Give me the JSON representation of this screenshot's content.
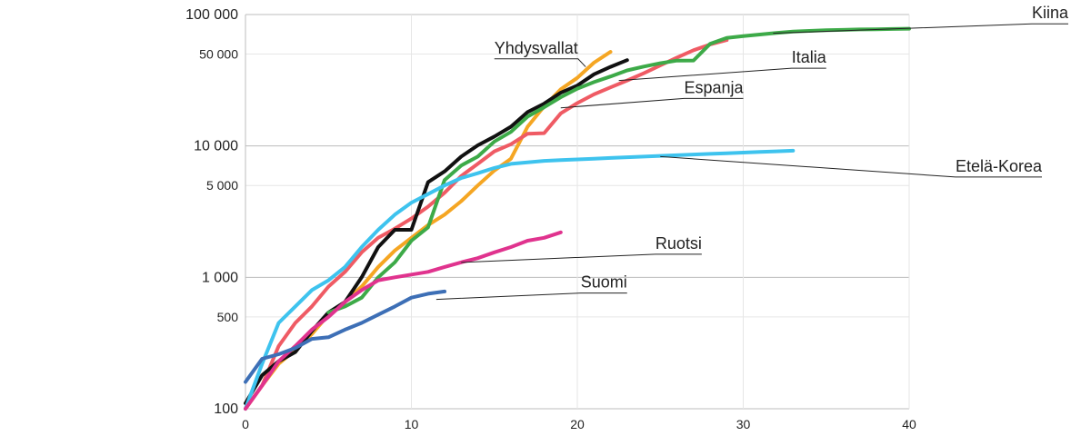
{
  "chart_data": {
    "type": "line",
    "y_scale": "log",
    "xlim": [
      0,
      40
    ],
    "ylim": [
      100,
      100000
    ],
    "x_ticks": [
      {
        "value": 0,
        "label": "0"
      },
      {
        "value": 10,
        "label": "10"
      },
      {
        "value": 20,
        "label": "20"
      },
      {
        "value": 30,
        "label": "30"
      },
      {
        "value": 40,
        "label": "40"
      }
    ],
    "y_ticks": [
      {
        "value": 100,
        "label": "100",
        "major": true
      },
      {
        "value": 500,
        "label": "500",
        "major": false
      },
      {
        "value": 1000,
        "label": "1 000",
        "major": true
      },
      {
        "value": 5000,
        "label": "5 000",
        "major": false
      },
      {
        "value": 10000,
        "label": "10 000",
        "major": true
      },
      {
        "value": 50000,
        "label": "50 000",
        "major": false
      },
      {
        "value": 100000,
        "label": "100 000",
        "major": true
      }
    ],
    "grid": "on",
    "series": [
      {
        "name": "Yhdysvallat",
        "color": "#F5A623",
        "x": [
          0,
          1,
          2,
          3,
          4,
          5,
          6,
          7,
          8,
          9,
          10,
          11,
          12,
          13,
          14,
          15,
          16,
          17,
          18,
          19,
          20,
          21,
          22
        ],
        "y": [
          100,
          150,
          220,
          280,
          370,
          520,
          650,
          850,
          1200,
          1600,
          2000,
          2500,
          3000,
          3800,
          5000,
          6500,
          8000,
          14000,
          20000,
          27000,
          33000,
          43000,
          52000
        ],
        "label": {
          "x": 15,
          "y": 46000,
          "side": "left",
          "leader_end": {
            "x": 20.5,
            "y": 40000
          }
        }
      },
      {
        "name": "Italia",
        "color": "#EF5B64",
        "x": [
          0,
          1,
          2,
          3,
          4,
          5,
          6,
          7,
          8,
          9,
          10,
          11,
          12,
          13,
          14,
          15,
          16,
          17,
          18,
          19,
          20,
          21,
          22,
          23,
          24,
          25,
          26,
          27,
          28,
          29
        ],
        "y": [
          100,
          150,
          300,
          450,
          600,
          850,
          1100,
          1550,
          2000,
          2350,
          2800,
          3450,
          4400,
          5900,
          7300,
          9100,
          10300,
          12400,
          12500,
          17700,
          21200,
          24700,
          27900,
          31500,
          35700,
          41000,
          47000,
          53500,
          59100,
          63900
        ],
        "label": {
          "x": 35,
          "y": 39000,
          "side": "right",
          "leader_end": {
            "x": 22.5,
            "y": 31500
          }
        }
      },
      {
        "name": "Espanja",
        "color": "#111111",
        "x": [
          0,
          1,
          2,
          3,
          4,
          5,
          6,
          7,
          8,
          9,
          10,
          11,
          12,
          13,
          14,
          15,
          16,
          17,
          18,
          19,
          20,
          21,
          22,
          23
        ],
        "y": [
          110,
          180,
          230,
          270,
          390,
          540,
          650,
          1000,
          1700,
          2300,
          2300,
          5300,
          6400,
          8300,
          10100,
          11800,
          14000,
          18100,
          21000,
          25400,
          28800,
          35100,
          40000,
          45000
        ],
        "label": {
          "x": 30,
          "y": 23000,
          "side": "right",
          "leader_end": {
            "x": 19,
            "y": 19500
          }
        }
      },
      {
        "name": "Kiina",
        "color": "#3DAA48",
        "x": [
          5,
          6,
          7,
          8,
          9,
          10,
          11,
          12,
          13,
          14,
          15,
          16,
          17,
          18,
          19,
          20,
          21,
          22,
          23,
          24,
          25,
          26,
          27,
          28,
          29,
          30,
          31,
          32,
          33,
          34,
          35,
          36,
          37,
          38,
          39,
          40
        ],
        "y": [
          540,
          600,
          700,
          1000,
          1300,
          1900,
          2400,
          5500,
          7100,
          8300,
          10800,
          12800,
          16700,
          19700,
          23500,
          27300,
          30600,
          33800,
          37600,
          40200,
          42600,
          44600,
          44700,
          59800,
          66400,
          68500,
          70500,
          72400,
          74200,
          75100,
          75900,
          76400,
          77000,
          77300,
          77700,
          78000
        ],
        "label": {
          "x": 50,
          "y": 85000,
          "side": "right",
          "leader_end": {
            "x": 31.8,
            "y": 72000
          }
        }
      },
      {
        "name": "Etelä-Korea",
        "color": "#3EC3EE",
        "x": [
          0,
          1,
          2,
          3,
          4,
          5,
          6,
          7,
          8,
          9,
          10,
          11,
          12,
          13,
          14,
          15,
          16,
          17,
          18,
          19,
          20,
          21,
          22,
          23,
          24,
          25,
          26,
          27,
          28,
          29,
          30,
          31,
          32,
          33
        ],
        "y": [
          100,
          220,
          450,
          600,
          800,
          950,
          1200,
          1700,
          2300,
          3000,
          3700,
          4300,
          5000,
          5700,
          6200,
          6800,
          7300,
          7500,
          7700,
          7800,
          7900,
          8000,
          8100,
          8200,
          8300,
          8400,
          8500,
          8600,
          8700,
          8800,
          8900,
          9000,
          9100,
          9200
        ],
        "label": {
          "x": 48,
          "y": 5800,
          "side": "right",
          "leader_end": {
            "x": 25,
            "y": 8300
          }
        }
      },
      {
        "name": "Ruotsi",
        "color": "#E0338E",
        "x": [
          0,
          1,
          2,
          3,
          4,
          5,
          6,
          7,
          8,
          9,
          10,
          11,
          12,
          13,
          14,
          15,
          16,
          17,
          18,
          19
        ],
        "y": [
          100,
          150,
          230,
          300,
          400,
          500,
          650,
          800,
          950,
          1000,
          1050,
          1100,
          1200,
          1300,
          1400,
          1550,
          1700,
          1900,
          2000,
          2200
        ],
        "label": {
          "x": 27.5,
          "y": 1500,
          "side": "right",
          "leader_end": {
            "x": 13,
            "y": 1300
          }
        }
      },
      {
        "name": "Suomi",
        "color": "#3D6FB6",
        "x": [
          0,
          1,
          2,
          3,
          4,
          5,
          6,
          7,
          8,
          9,
          10,
          11,
          12
        ],
        "y": [
          160,
          240,
          260,
          290,
          340,
          350,
          400,
          450,
          520,
          600,
          700,
          750,
          780
        ],
        "label": {
          "x": 23,
          "y": 760,
          "side": "right",
          "leader_end": {
            "x": 11.5,
            "y": 680
          }
        }
      }
    ]
  }
}
